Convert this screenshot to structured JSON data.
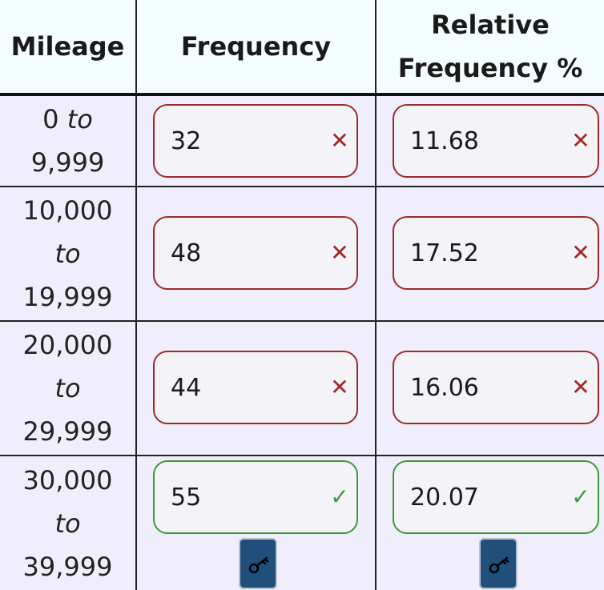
{
  "headers": {
    "mileage": "Mileage",
    "frequency": "Frequency",
    "relative_line1": "Relative",
    "relative_line2": "Frequency %"
  },
  "rows": [
    {
      "mileage_from": "0",
      "mileage_to_word": "to",
      "mileage_to": "9,999",
      "frequency": "32",
      "frequency_status": "incorrect",
      "relative": "11.68",
      "relative_status": "incorrect"
    },
    {
      "mileage_from": "10,000",
      "mileage_to_word": "to",
      "mileage_to": "19,999",
      "frequency": "48",
      "frequency_status": "incorrect",
      "relative": "17.52",
      "relative_status": "incorrect"
    },
    {
      "mileage_from": "20,000",
      "mileage_to_word": "to",
      "mileage_to": "29,999",
      "frequency": "44",
      "frequency_status": "incorrect",
      "relative": "16.06",
      "relative_status": "incorrect"
    },
    {
      "mileage_from": "30,000",
      "mileage_to_word": "to",
      "mileage_to": "39,999",
      "frequency": "55",
      "frequency_status": "correct",
      "relative": "20.07",
      "relative_status": "correct"
    }
  ],
  "marks": {
    "incorrect": "✕",
    "correct": "✓"
  },
  "icons": {
    "incorrect": "x-icon",
    "correct": "check-icon",
    "answer_key": "key-icon"
  },
  "colors": {
    "incorrect_border": "#9c2a2a",
    "correct_border": "#3a9a3a",
    "key_button": "#1f4f7a",
    "header_bg": "#f5fefe",
    "row_bg": "#f0eefc"
  }
}
